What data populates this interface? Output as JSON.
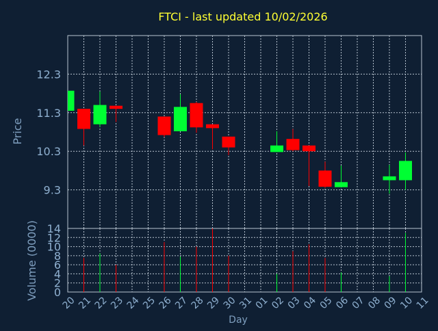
{
  "title": "FTCI - last updated 10/02/2026",
  "colors": {
    "background": "#0f1f33",
    "title": "#ffff33",
    "axis_label": "#7f9fbf",
    "tick": "#8fb0d0",
    "grid": "#b8c4d0",
    "up": "#00ff33",
    "down": "#ff0000"
  },
  "chart_data": [
    {
      "type": "candlestick",
      "ylabel": "Price",
      "ylim": [
        8.3,
        13.3
      ],
      "yticks": [
        "12.3",
        "11.3",
        "10.3",
        "9.3"
      ],
      "grid": true,
      "x": [
        "20",
        "21",
        "22",
        "23",
        "24",
        "26",
        "27",
        "28",
        "29",
        "30",
        "31",
        "01",
        "02",
        "03",
        "04",
        "05",
        "06",
        "07",
        "08",
        "09",
        "10",
        "11"
      ],
      "candles": [
        {
          "x": "20",
          "open": 11.35,
          "high": 11.87,
          "low": 11.35,
          "close": 11.87
        },
        {
          "x": "21",
          "open": 11.4,
          "high": 11.4,
          "low": 10.45,
          "close": 10.88
        },
        {
          "x": "22",
          "open": 11.0,
          "high": 11.85,
          "low": 10.93,
          "close": 11.5
        },
        {
          "x": "23",
          "open": 11.48,
          "high": 11.48,
          "low": 11.06,
          "close": 11.4
        },
        {
          "x": "26",
          "open": 11.2,
          "high": 11.2,
          "low": 10.67,
          "close": 10.72
        },
        {
          "x": "27",
          "open": 10.82,
          "high": 11.78,
          "low": 10.82,
          "close": 11.45
        },
        {
          "x": "28",
          "open": 11.55,
          "high": 11.58,
          "low": 10.78,
          "close": 10.92
        },
        {
          "x": "29",
          "open": 11.0,
          "high": 11.0,
          "low": 10.35,
          "close": 10.9
        },
        {
          "x": "30",
          "open": 10.68,
          "high": 10.68,
          "low": 10.2,
          "close": 10.4
        },
        {
          "x": "02",
          "open": 10.28,
          "high": 10.82,
          "low": 10.28,
          "close": 10.45
        },
        {
          "x": "03",
          "open": 10.62,
          "high": 10.88,
          "low": 10.3,
          "close": 10.33
        },
        {
          "x": "04",
          "open": 10.45,
          "high": 10.45,
          "low": 9.4,
          "close": 10.3
        },
        {
          "x": "05",
          "open": 9.8,
          "high": 10.03,
          "low": 9.35,
          "close": 9.38
        },
        {
          "x": "06",
          "open": 9.37,
          "high": 9.93,
          "low": 9.37,
          "close": 9.5
        },
        {
          "x": "09",
          "open": 9.55,
          "high": 9.95,
          "low": 9.2,
          "close": 9.65
        },
        {
          "x": "10",
          "open": 9.55,
          "high": 10.27,
          "low": 9.3,
          "close": 10.05
        }
      ]
    },
    {
      "type": "bar",
      "xlabel": "Day",
      "ylabel": "Volume (0000)",
      "ylim": [
        0,
        14
      ],
      "yticks": [
        "0",
        "2",
        "4",
        "6",
        "8",
        "10",
        "12",
        "14"
      ],
      "xticks": [
        "20",
        "21",
        "22",
        "23",
        "24",
        "25",
        "26",
        "27",
        "28",
        "29",
        "30",
        "31",
        "01",
        "02",
        "03",
        "04",
        "05",
        "06",
        "07",
        "08",
        "09",
        "10",
        "11"
      ],
      "grid": true,
      "bars": [
        {
          "x": "21",
          "value": 7.5,
          "dir": "down"
        },
        {
          "x": "22",
          "value": 8.5,
          "dir": "up"
        },
        {
          "x": "23",
          "value": 6.0,
          "dir": "down"
        },
        {
          "x": "26",
          "value": 11.0,
          "dir": "down"
        },
        {
          "x": "27",
          "value": 7.8,
          "dir": "up"
        },
        {
          "x": "28",
          "value": 10.0,
          "dir": "down"
        },
        {
          "x": "29",
          "value": 14.0,
          "dir": "down"
        },
        {
          "x": "30",
          "value": 8.0,
          "dir": "down"
        },
        {
          "x": "02",
          "value": 4.0,
          "dir": "up"
        },
        {
          "x": "03",
          "value": 9.0,
          "dir": "down"
        },
        {
          "x": "04",
          "value": 10.5,
          "dir": "down"
        },
        {
          "x": "05",
          "value": 7.5,
          "dir": "down"
        },
        {
          "x": "06",
          "value": 4.3,
          "dir": "up"
        },
        {
          "x": "09",
          "value": 3.5,
          "dir": "up"
        },
        {
          "x": "10",
          "value": 13.0,
          "dir": "up"
        }
      ]
    }
  ]
}
